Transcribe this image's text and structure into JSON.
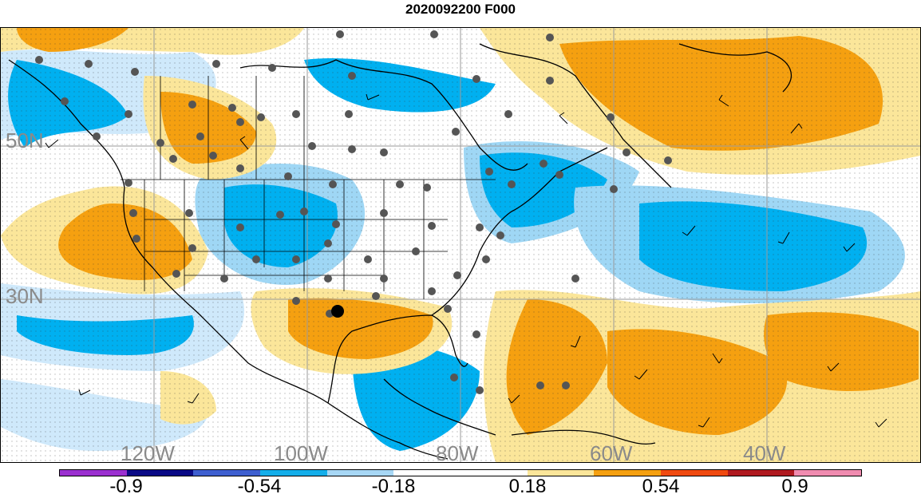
{
  "title": "2020092200 F000",
  "map": {
    "lat_labels": [
      "50N",
      "30N"
    ],
    "lon_labels": [
      "120W",
      "100W",
      "80W",
      "60W",
      "40W"
    ],
    "colors": {
      "strong_negative": "#00b0f0",
      "mid_negative": "#9fd7f5",
      "weak_negative": "#cfe9fb",
      "weak_positive": "#fbe69a",
      "mid_positive": "#f5a010",
      "land_outline": "#000000"
    }
  },
  "colorbar": {
    "labels": [
      "-0.9",
      "-0.54",
      "-0.18",
      "0.18",
      "0.54",
      "0.9"
    ],
    "colors": [
      "#9b30d0",
      "#0a0a86",
      "#3e5fd0",
      "#13aeea",
      "#a7d7f5",
      "#ffffff",
      "#ffffff",
      "#fbe69a",
      "#f5a010",
      "#f04a10",
      "#b01a20",
      "#f08cb0"
    ]
  }
}
